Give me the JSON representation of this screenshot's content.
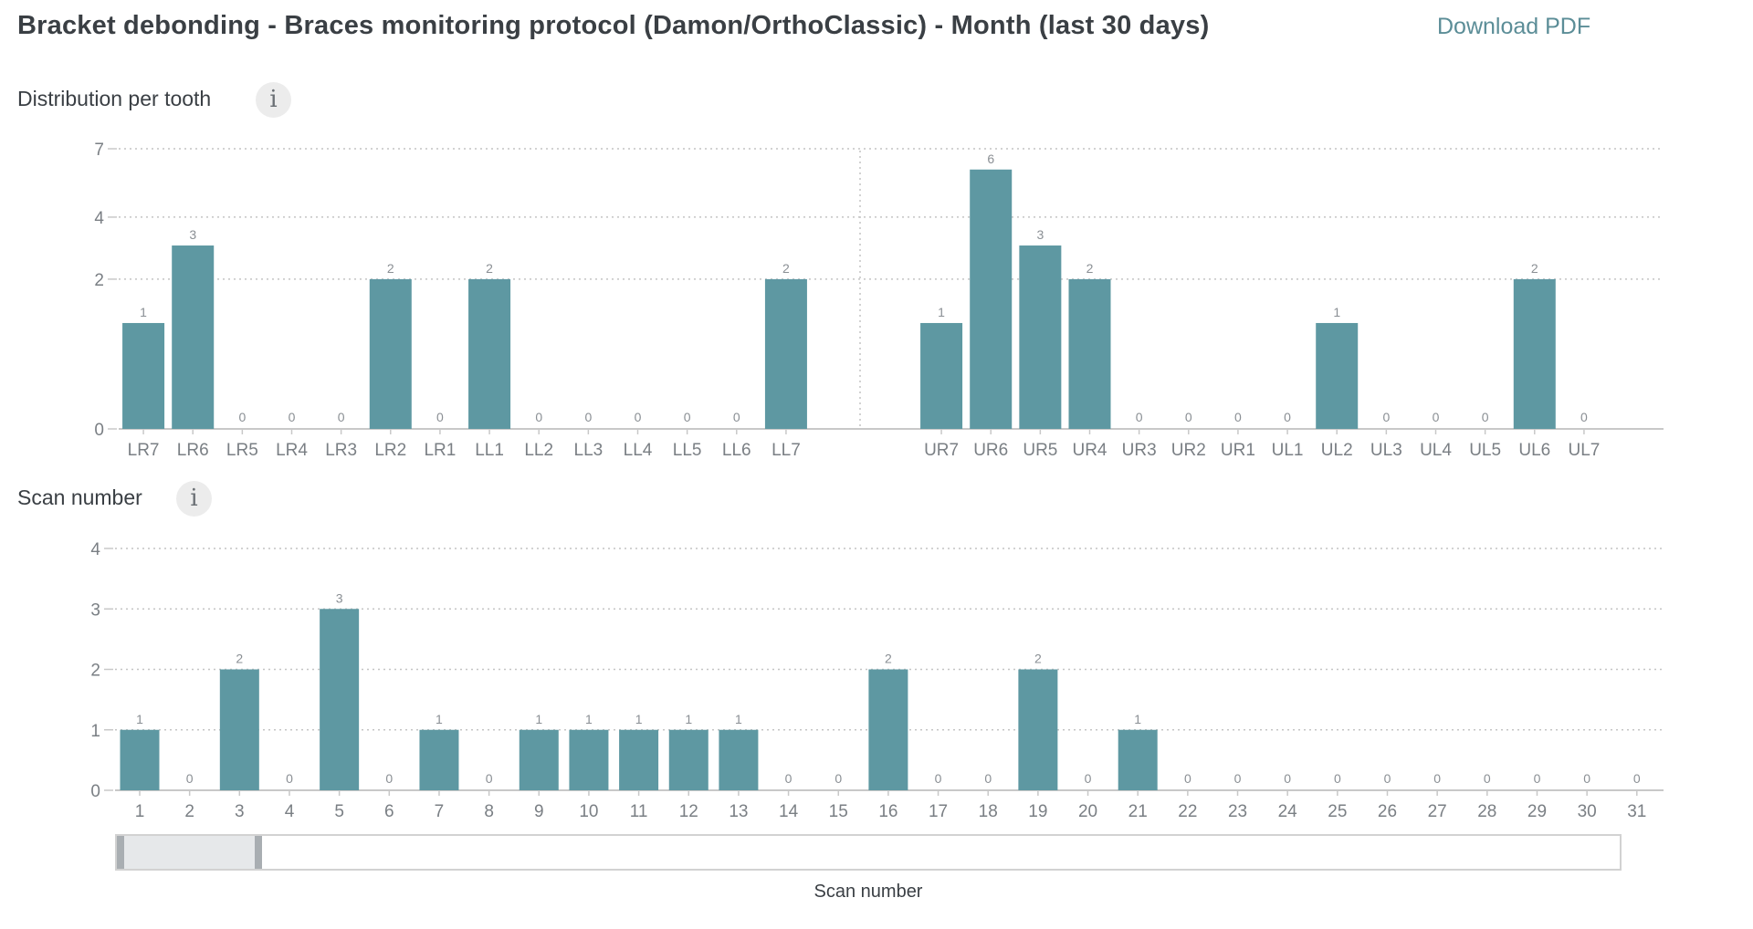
{
  "header": {
    "title": "Bracket debonding - Braces monitoring protocol (Damon/OrthoClassic) - Month (last 30 days)",
    "download_label": "Download PDF"
  },
  "sections": {
    "tooth_title": "Distribution per tooth",
    "scan_title": "Scan number",
    "info_glyph": "i"
  },
  "colors": {
    "bar": "#5e98a2",
    "axis": "#c8c8c8",
    "grid": "#c4c4c4",
    "tick_label": "#7a7f84",
    "value_label": "#8a8f94",
    "link": "#5b8d97"
  },
  "slider": {
    "caption": "Scan number",
    "window_start": 1,
    "window_end": 3,
    "range_max": 31
  },
  "chart_data": [
    {
      "type": "bar",
      "categories": [
        "LR7",
        "LR6",
        "LR5",
        "LR4",
        "LR3",
        "LR2",
        "LR1",
        "LL1",
        "LL2",
        "LL3",
        "LL4",
        "LL5",
        "LL6",
        "LL7",
        "UR7",
        "UR6",
        "UR5",
        "UR4",
        "UR3",
        "UR2",
        "UR1",
        "UL1",
        "UL2",
        "UL3",
        "UL4",
        "UL5",
        "UL6",
        "UL7"
      ],
      "values": [
        1,
        3,
        0,
        0,
        0,
        2,
        0,
        2,
        0,
        0,
        0,
        0,
        0,
        2,
        1,
        6,
        3,
        2,
        0,
        0,
        0,
        0,
        1,
        0,
        0,
        0,
        2,
        0
      ],
      "y_ticks": [
        "0",
        "2",
        "4",
        "7"
      ],
      "y_scale": "sqrt",
      "ylim": [
        0,
        7
      ],
      "grid": true,
      "group_divider_after": "LL7"
    },
    {
      "type": "bar",
      "categories": [
        "1",
        "2",
        "3",
        "4",
        "5",
        "6",
        "7",
        "8",
        "9",
        "10",
        "11",
        "12",
        "13",
        "14",
        "15",
        "16",
        "17",
        "18",
        "19",
        "20",
        "21",
        "22",
        "23",
        "24",
        "25",
        "26",
        "27",
        "28",
        "29",
        "30",
        "31"
      ],
      "values": [
        1,
        0,
        2,
        0,
        3,
        0,
        1,
        0,
        1,
        1,
        1,
        1,
        1,
        0,
        0,
        2,
        0,
        0,
        2,
        0,
        1,
        0,
        0,
        0,
        0,
        0,
        0,
        0,
        0,
        0,
        0
      ],
      "y_ticks": [
        "0",
        "1",
        "2",
        "3",
        "4"
      ],
      "ylim": [
        0,
        4
      ],
      "xlabel": "Scan number",
      "grid": true
    }
  ]
}
